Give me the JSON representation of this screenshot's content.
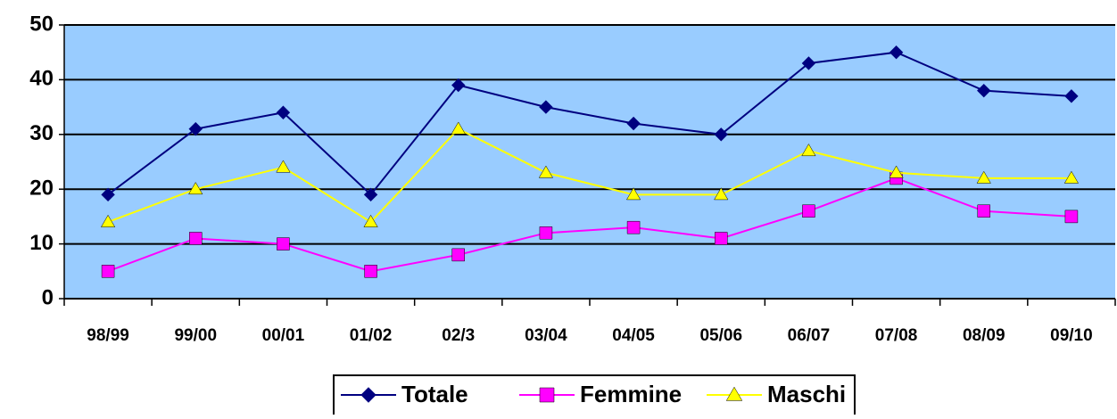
{
  "chart_data": {
    "type": "line",
    "categories": [
      "98/99",
      "99/00",
      "00/01",
      "01/02",
      "02/3",
      "03/04",
      "04/05",
      "05/06",
      "06/07",
      "07/08",
      "08/09",
      "09/10"
    ],
    "series": [
      {
        "name": "Totale",
        "color": "#000080",
        "marker": "diamond",
        "values": [
          19,
          31,
          34,
          19,
          39,
          35,
          32,
          30,
          43,
          45,
          38,
          37
        ]
      },
      {
        "name": "Femmine",
        "color": "#ff00ff",
        "marker": "square",
        "values": [
          5,
          11,
          10,
          5,
          8,
          12,
          13,
          11,
          16,
          22,
          16,
          15
        ]
      },
      {
        "name": "Maschi",
        "color": "#ffff00",
        "marker": "triangle",
        "values": [
          14,
          20,
          24,
          14,
          31,
          23,
          19,
          19,
          27,
          23,
          22,
          22
        ]
      }
    ],
    "ylim": [
      0,
      50
    ],
    "yticks": [
      0,
      10,
      20,
      30,
      40,
      50
    ],
    "grid": true,
    "legend": "bottom"
  }
}
